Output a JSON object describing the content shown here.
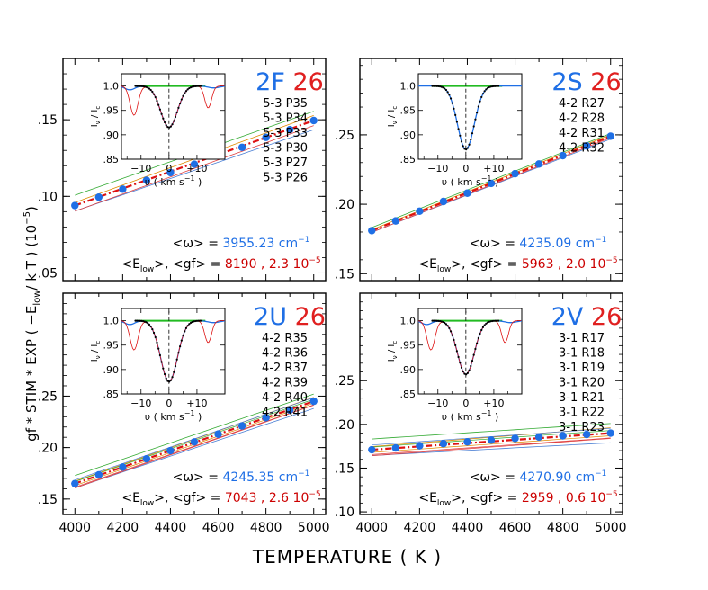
{
  "figure": {
    "ylabel_main": "gf * STIM * EXP ( −E",
    "ylabel_sub": "low",
    "ylabel_tail": "/ k T )   (10",
    "ylabel_exp": "−5",
    "ylabel_close": ")",
    "xlabel": "TEMPERATURE   ( K )"
  },
  "inset_labels": {
    "ylabel_main": "I",
    "ylabel_sub1": "ν",
    "ylabel_mid": " / I",
    "ylabel_sub2": "c",
    "xlabel_main": "υ  ( km s",
    "xlabel_exp": "−1",
    "xlabel_close": ")"
  },
  "colors": {
    "blue_points": "#1f6fe5",
    "red_fit": "#dd1111",
    "green_line": "#22bb22",
    "black": "#000000",
    "omega_text": "#1f6fe5",
    "elow_text": "#cc0000",
    "band_label_blue": "#1f6fe5",
    "band_label_red": "#e02020",
    "envelope_blue": "#4a7fd4",
    "envelope_red": "#e04040",
    "envelope_orange": "#e08a00",
    "envelope_green": "#33aa33"
  },
  "chart_data": [
    {
      "type": "line",
      "panel": "2F 26",
      "band": "2F",
      "number": "26",
      "lines": [
        "5-3  P35",
        "5-3  P34",
        "5-3  P33",
        "5-3  P30",
        "5-3  P27",
        "5-3  P26"
      ],
      "x": [
        4000,
        4100,
        4200,
        4300,
        4400,
        4500,
        4600,
        4700,
        4800,
        4900,
        5000
      ],
      "series": [
        {
          "values": [
            0.094,
            0.0995,
            0.1047,
            0.1105,
            0.1155,
            0.121,
            0.1265,
            0.132,
            0.1385,
            0.1435,
            0.1495
          ]
        }
      ],
      "xlim": [
        3950,
        5050
      ],
      "ylim": [
        0.045,
        0.19
      ],
      "yticks": [
        ".05",
        ".10",
        ".15"
      ],
      "ytick_values": [
        0.05,
        0.1,
        0.15
      ],
      "omega_label": "<ω> = ",
      "omega_value": "3955.23 cm",
      "omega_unit_exp": "−1",
      "elow_label": "<E",
      "elow_sub": "low",
      "elow_mid": ">, <gf> = ",
      "elow_value": "8190 , 2.3 10",
      "elow_exp": "−5",
      "envelope_spread": 0.006,
      "inset": {
        "xlim": [
          -17,
          20
        ],
        "ylim": [
          0.85,
          1.025
        ],
        "yticks": [
          "1.0",
          ".95",
          ".90",
          ".85"
        ],
        "ytick_values": [
          1.0,
          0.95,
          0.9,
          0.85
        ],
        "xticks": [
          "−10",
          "0",
          "+10"
        ],
        "xtick_values": [
          -10,
          0,
          10
        ],
        "profile_depth": 0.085,
        "profile_width": 3.0,
        "has_side_features": true
      }
    },
    {
      "type": "line",
      "panel": "2S 26",
      "band": "2S",
      "number": "26",
      "lines": [
        "4-2  R27",
        "4-2  R28",
        "4-2  R31",
        "4-2  R32"
      ],
      "x": [
        4000,
        4100,
        4200,
        4300,
        4400,
        4500,
        4600,
        4700,
        4800,
        4900,
        5000
      ],
      "series": [
        {
          "values": [
            0.181,
            0.188,
            0.195,
            0.202,
            0.208,
            0.215,
            0.222,
            0.229,
            0.235,
            0.242,
            0.249
          ]
        }
      ],
      "xlim": [
        3950,
        5050
      ],
      "ylim": [
        0.145,
        0.305
      ],
      "yticks": [
        ".15",
        ".20",
        ".25"
      ],
      "ytick_values": [
        0.15,
        0.2,
        0.25
      ],
      "omega_label": "<ω> = ",
      "omega_value": "4235.09 cm",
      "omega_unit_exp": "−1",
      "elow_label": "<E",
      "elow_sub": "low",
      "elow_mid": ">, <gf> = ",
      "elow_value": "5963 , 2.0 10",
      "elow_exp": "−5",
      "envelope_spread": 0.002,
      "inset": {
        "xlim": [
          -17,
          20
        ],
        "ylim": [
          0.85,
          1.025
        ],
        "yticks": [
          "1.0",
          ".95",
          ".90",
          ".85"
        ],
        "ytick_values": [
          1.0,
          0.95,
          0.9,
          0.85
        ],
        "xticks": [
          "−10",
          "0",
          "+10"
        ],
        "xtick_values": [
          -10,
          0,
          10
        ],
        "profile_depth": 0.13,
        "profile_width": 3.0,
        "has_side_features": false
      }
    },
    {
      "type": "line",
      "panel": "2U 26",
      "band": "2U",
      "number": "26",
      "lines": [
        "4-2  R35",
        "4-2  R36",
        "4-2  R37",
        "4-2  R39",
        "4-2  R40",
        "4-2  R41"
      ],
      "x": [
        4000,
        4100,
        4200,
        4300,
        4400,
        4500,
        4600,
        4700,
        4800,
        4900,
        5000
      ],
      "series": [
        {
          "values": [
            0.165,
            0.1735,
            0.181,
            0.189,
            0.197,
            0.2055,
            0.213,
            0.221,
            0.229,
            0.2365,
            0.245
          ]
        }
      ],
      "xlim": [
        3950,
        5050
      ],
      "ylim": [
        0.135,
        0.35
      ],
      "yticks": [
        ".15",
        ".20",
        ".25"
      ],
      "ytick_values": [
        0.15,
        0.2,
        0.25
      ],
      "omega_label": "<ω> = ",
      "omega_value": "4245.35 cm",
      "omega_unit_exp": "−1",
      "elow_label": "<E",
      "elow_sub": "low",
      "elow_mid": ">, <gf> = ",
      "elow_value": "7043 , 2.6 10",
      "elow_exp": "−5",
      "envelope_spread": 0.007,
      "inset": {
        "xlim": [
          -17,
          20
        ],
        "ylim": [
          0.85,
          1.025
        ],
        "yticks": [
          "1.0",
          ".95",
          ".90",
          ".85"
        ],
        "ytick_values": [
          1.0,
          0.95,
          0.9,
          0.85
        ],
        "xticks": [
          "−10",
          "0",
          "+10"
        ],
        "xtick_values": [
          -10,
          0,
          10
        ],
        "profile_depth": 0.125,
        "profile_width": 3.0,
        "has_side_features": true
      }
    },
    {
      "type": "line",
      "panel": "2V 26",
      "band": "2V",
      "number": "26",
      "lines": [
        "3-1  R17",
        "3-1  R18",
        "3-1  R19",
        "3-1  R20",
        "3-1  R21",
        "3-1  R22",
        "3-1  R23"
      ],
      "x": [
        4000,
        4100,
        4200,
        4300,
        4400,
        4500,
        4600,
        4700,
        4800,
        4900,
        5000
      ],
      "series": [
        {
          "values": [
            0.171,
            0.173,
            0.1755,
            0.178,
            0.18,
            0.182,
            0.184,
            0.1855,
            0.187,
            0.1885,
            0.19
          ]
        }
      ],
      "xlim": [
        3950,
        5050
      ],
      "ylim": [
        0.097,
        0.35
      ],
      "yticks": [
        ".10",
        ".15",
        ".20",
        ".25"
      ],
      "ytick_values": [
        0.1,
        0.15,
        0.2,
        0.25
      ],
      "omega_label": "<ω> = ",
      "omega_value": "4270.90 cm",
      "omega_unit_exp": "−1",
      "elow_label": "<E",
      "elow_sub": "low",
      "elow_mid": ">, <gf> = ",
      "elow_value": "2959 , 0.6 10",
      "elow_exp": "−5",
      "envelope_spread": 0.011,
      "inset": {
        "xlim": [
          -17,
          20
        ],
        "ylim": [
          0.85,
          1.025
        ],
        "yticks": [
          "1.0",
          ".95",
          ".90",
          ".85"
        ],
        "ytick_values": [
          1.0,
          0.95,
          0.9,
          0.85
        ],
        "xticks": [
          "−10",
          "0",
          "+10"
        ],
        "xtick_values": [
          -10,
          0,
          10
        ],
        "profile_depth": 0.11,
        "profile_width": 3.0,
        "has_side_features": true
      }
    }
  ],
  "x_axis": {
    "ticks": [
      "4000",
      "4200",
      "4400",
      "4600",
      "4800",
      "5000"
    ],
    "tick_values": [
      4000,
      4200,
      4400,
      4600,
      4800,
      5000
    ]
  }
}
